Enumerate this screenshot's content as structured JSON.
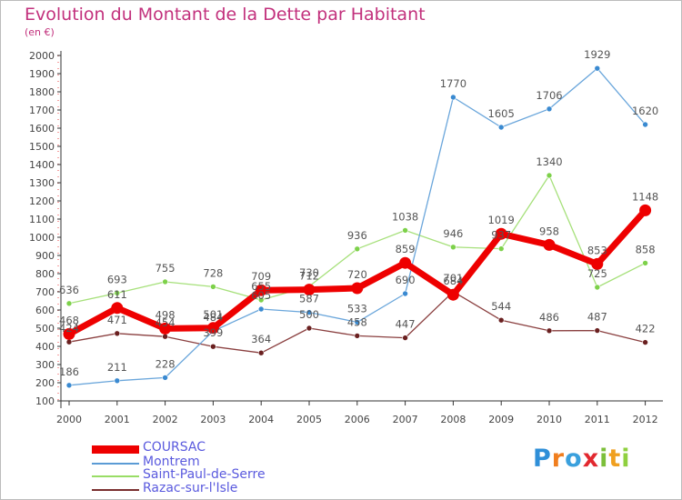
{
  "title": "Evolution du Montant de la Dette par Habitant",
  "unit": "(en €)",
  "brand": {
    "letters": [
      "P",
      "r",
      "o",
      "x",
      "i",
      "t",
      "i"
    ],
    "colors": [
      "#2f8fd8",
      "#f07e1e",
      "#3aa0dd",
      "#e2282f",
      "#7cbf3a",
      "#f0a020",
      "#8fd03f"
    ]
  },
  "chart_data": {
    "type": "line",
    "x": [
      "2000",
      "2001",
      "2002",
      "2003",
      "2004",
      "2005",
      "2006",
      "2007",
      "2008",
      "2009",
      "2010",
      "2011",
      "2012"
    ],
    "ylim": [
      100,
      2000
    ],
    "yticks": [
      100,
      200,
      300,
      400,
      500,
      600,
      700,
      800,
      900,
      1000,
      1100,
      1200,
      1300,
      1400,
      1500,
      1600,
      1700,
      1800,
      1900,
      2000
    ],
    "grid": false,
    "legend_position": "bottom-left",
    "series": [
      {
        "name": "COURSAC",
        "color": "#ee0000",
        "values": [
          468,
          611,
          498,
          501,
          709,
          712,
          720,
          859,
          684,
          1019,
          958,
          853,
          1148
        ]
      },
      {
        "name": "Montrem",
        "color": "#5b9bd5",
        "values": [
          186,
          211,
          228,
          484,
          605,
          587,
          533,
          690,
          1770,
          1605,
          1706,
          1929,
          1620
        ]
      },
      {
        "name": "Saint-Paul-de-Serre",
        "color": "#99dd66",
        "values": [
          636,
          693,
          755,
          728,
          655,
          730,
          936,
          1038,
          946,
          937,
          1340,
          725,
          858
        ]
      },
      {
        "name": "Razac-sur-l'Isle",
        "color": "#7a2f2f",
        "values": [
          424,
          471,
          454,
          399,
          364,
          500,
          458,
          447,
          701,
          544,
          486,
          487,
          422
        ]
      }
    ]
  }
}
